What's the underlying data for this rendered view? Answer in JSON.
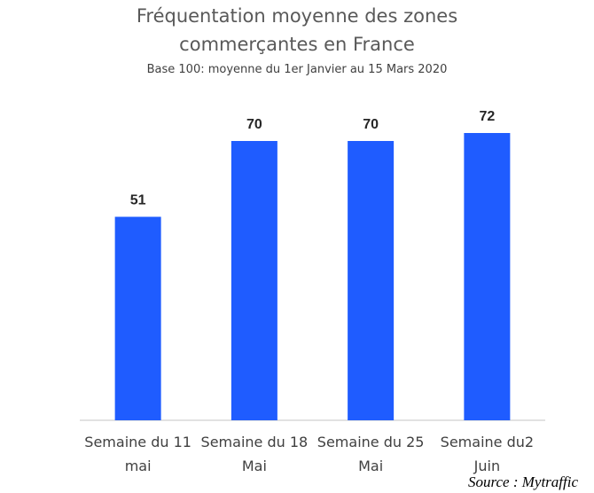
{
  "title_line1": "Fréquentation moyenne des zones",
  "title_line2": "commerçantes en France",
  "subtitle": "Base 100: moyenne du 1er Janvier au 15 Mars 2020",
  "source": "Source : Mytraffic",
  "colors": {
    "bar": "#1f5cff",
    "axis": "#d9d9d9",
    "label": "#262626",
    "tick": "#404040"
  },
  "chart_data": {
    "type": "bar",
    "categories": [
      [
        "Semaine du 11",
        "mai"
      ],
      [
        "Semaine du 18",
        "Mai"
      ],
      [
        "Semaine du 25",
        "Mai"
      ],
      [
        "Semaine du2",
        "Juin"
      ]
    ],
    "values": [
      51,
      70,
      70,
      72
    ],
    "data_labels": [
      "51",
      "70",
      "70",
      "72"
    ],
    "ylim": [
      0,
      100
    ],
    "grid": false,
    "legend": "none"
  }
}
